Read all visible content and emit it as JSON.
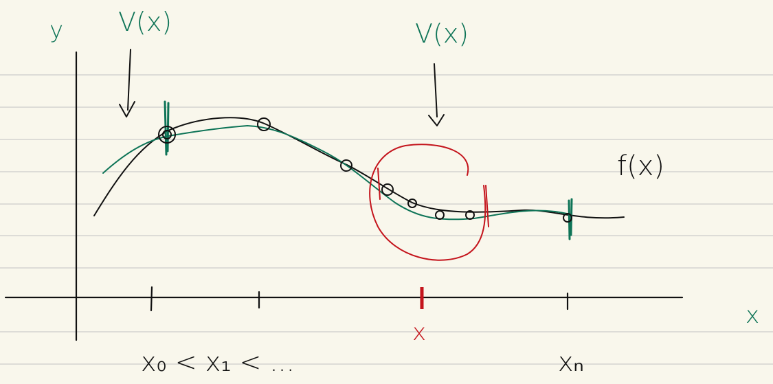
{
  "labels": {
    "y_axis": "y",
    "v_left": "V(x)",
    "v_right": "V(x)",
    "f": "f(x)",
    "x_axis": "x",
    "red_x": "x",
    "sequence": "x₀ < x₁ < ...",
    "xn": "xₙ"
  }
}
